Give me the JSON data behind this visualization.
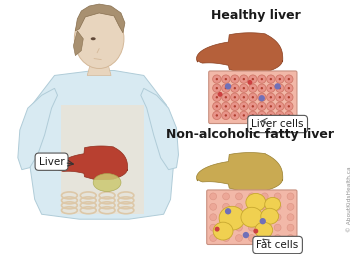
{
  "bg_color": "#ffffff",
  "healthy_liver_label": "Healthy liver",
  "fatty_liver_label": "Non-alcoholic fatty liver",
  "liver_callout": "Liver",
  "liver_cells_label": "Liver cells",
  "fat_cells_label": "Fat cells",
  "healthy_liver_color": "#b5603a",
  "fatty_liver_color": "#c9aa52",
  "cell_bg_color": "#f2b8a8",
  "cell_border_color": "#c89080",
  "healthy_cell_fill": "#e8948a",
  "healthy_cell_ring": "#d07868",
  "fat_droplet_color": "#f0d050",
  "fat_droplet_edge": "#c8a830",
  "blue_dot_color": "#7070b8",
  "red_dot_color": "#cc4040",
  "skin_color": "#e8d5be",
  "skin_dark": "#d4b898",
  "hair_color": "#a89070",
  "shirt_color": "#d8eaf2",
  "shirt_edge": "#b0ccd8",
  "liver_body_color": "#b84030",
  "stomach_color": "#d4c878",
  "intestine_color": "#ddc8a8",
  "watermark": "© AboutKidsHealth.ca",
  "title_fontsize": 9,
  "label_fontsize": 7.5
}
